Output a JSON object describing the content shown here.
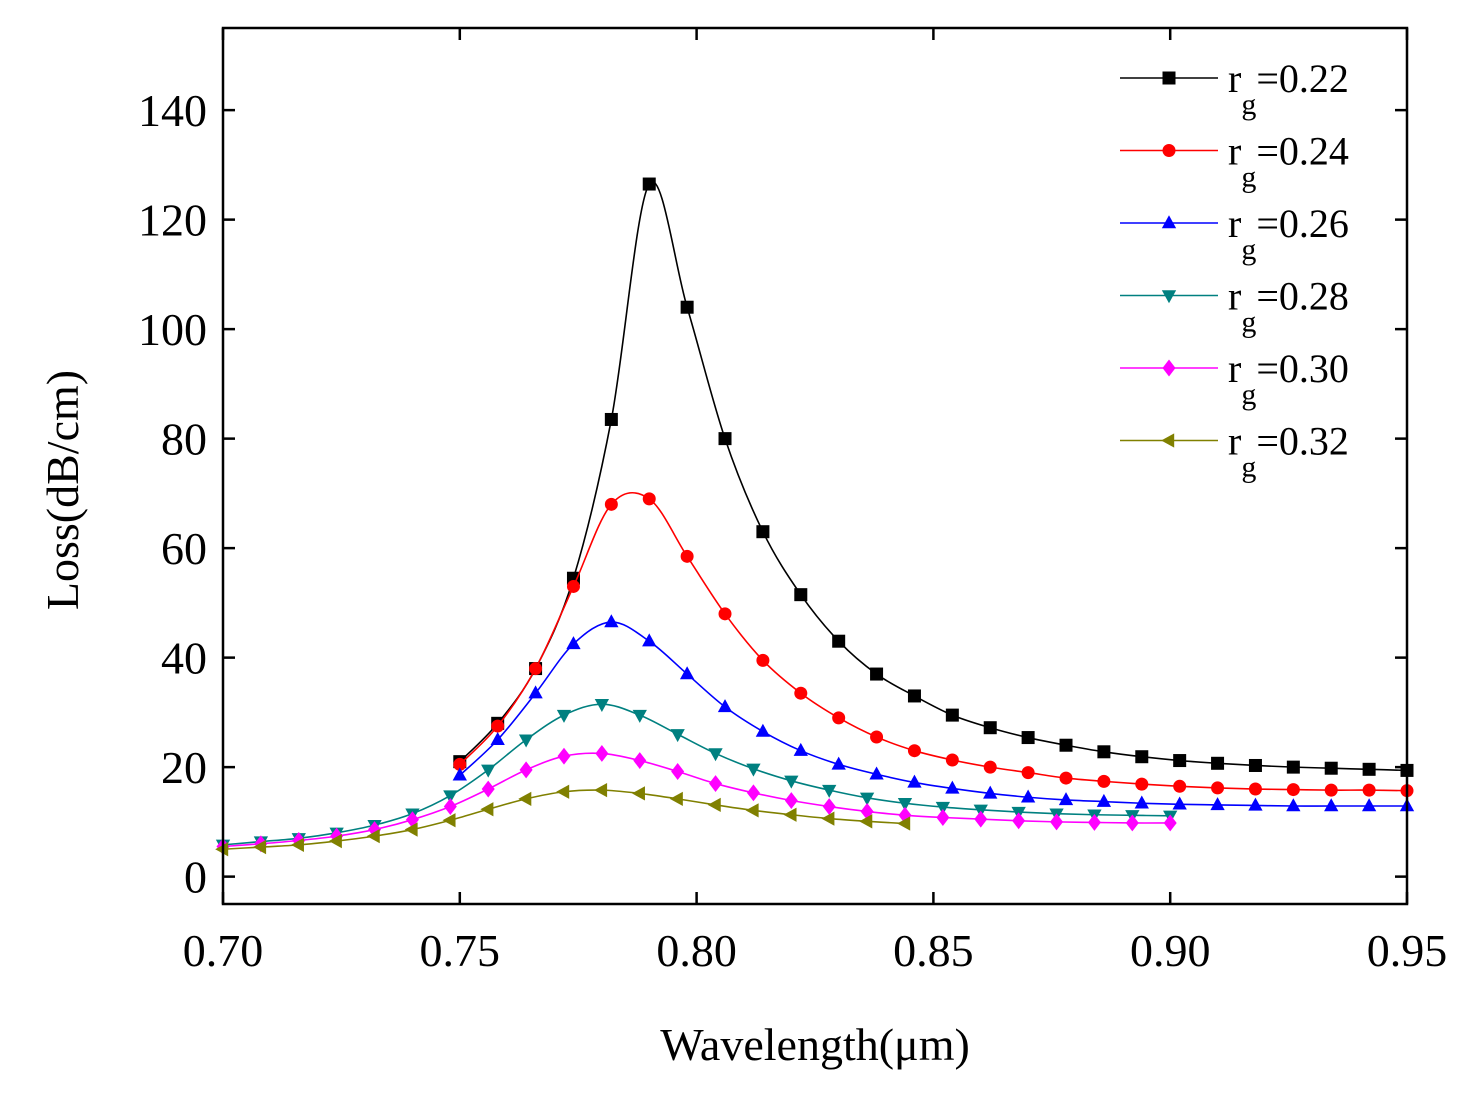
{
  "chart_data": {
    "type": "line",
    "title": "",
    "xlabel": "Wavelength(μm)",
    "ylabel": "Loss(dB/cm)",
    "xlim": [
      0.7,
      0.95
    ],
    "ylim": [
      -5,
      155
    ],
    "xticks": [
      0.7,
      0.75,
      0.8,
      0.85,
      0.9,
      0.95
    ],
    "xtick_labels": [
      "0.70",
      "0.75",
      "0.80",
      "0.85",
      "0.90",
      "0.95"
    ],
    "yticks": [
      0,
      20,
      40,
      60,
      80,
      100,
      120,
      140
    ],
    "ytick_labels": [
      "0",
      "20",
      "40",
      "60",
      "80",
      "100",
      "120",
      "140"
    ],
    "grid": false,
    "legend_position": "top-right",
    "series": [
      {
        "name": "r_g=0.22",
        "legend_base": "r",
        "legend_sub": "g",
        "legend_value": "=0.22",
        "color": "#000000",
        "marker": "square",
        "x": [
          0.75,
          0.758,
          0.766,
          0.774,
          0.782,
          0.79,
          0.798,
          0.806,
          0.814,
          0.822,
          0.83,
          0.838,
          0.846,
          0.854,
          0.862,
          0.87,
          0.878,
          0.886,
          0.894,
          0.902,
          0.91,
          0.918,
          0.926,
          0.934,
          0.942,
          0.95
        ],
        "y": [
          21.0,
          28.0,
          38.0,
          54.5,
          83.5,
          126.5,
          104.0,
          80.0,
          63.0,
          51.5,
          43.0,
          37.0,
          33.0,
          29.5,
          27.2,
          25.4,
          24.0,
          22.8,
          21.9,
          21.2,
          20.7,
          20.3,
          20.0,
          19.8,
          19.6,
          19.4
        ]
      },
      {
        "name": "r_g=0.24",
        "legend_base": "r",
        "legend_sub": "g",
        "legend_value": "=0.24",
        "color": "#ff0000",
        "marker": "circle",
        "x": [
          0.75,
          0.758,
          0.766,
          0.774,
          0.782,
          0.79,
          0.798,
          0.806,
          0.814,
          0.822,
          0.83,
          0.838,
          0.846,
          0.854,
          0.862,
          0.87,
          0.878,
          0.886,
          0.894,
          0.902,
          0.91,
          0.918,
          0.926,
          0.934,
          0.942,
          0.95
        ],
        "y": [
          20.5,
          27.5,
          38.0,
          53.0,
          68.0,
          69.0,
          58.5,
          48.0,
          39.5,
          33.5,
          29.0,
          25.5,
          23.0,
          21.3,
          20.0,
          19.0,
          18.0,
          17.4,
          16.9,
          16.5,
          16.2,
          16.0,
          15.9,
          15.8,
          15.8,
          15.7
        ]
      },
      {
        "name": "r_g=0.26",
        "legend_base": "r",
        "legend_sub": "g",
        "legend_value": "=0.26",
        "color": "#0000ff",
        "marker": "triangle-up",
        "x": [
          0.75,
          0.758,
          0.766,
          0.774,
          0.782,
          0.79,
          0.798,
          0.806,
          0.814,
          0.822,
          0.83,
          0.838,
          0.846,
          0.854,
          0.862,
          0.87,
          0.878,
          0.886,
          0.894,
          0.902,
          0.91,
          0.918,
          0.926,
          0.934,
          0.942,
          0.95
        ],
        "y": [
          18.5,
          25.0,
          33.5,
          42.5,
          46.5,
          43.0,
          37.0,
          31.0,
          26.5,
          23.0,
          20.5,
          18.7,
          17.2,
          16.1,
          15.2,
          14.5,
          14.0,
          13.7,
          13.4,
          13.2,
          13.1,
          13.0,
          12.9,
          12.9,
          12.9,
          12.9
        ]
      },
      {
        "name": "r_g=0.28",
        "legend_base": "r",
        "legend_sub": "g",
        "legend_value": "=0.28",
        "color": "#008080",
        "marker": "triangle-down",
        "x": [
          0.7,
          0.708,
          0.716,
          0.724,
          0.732,
          0.74,
          0.748,
          0.756,
          0.764,
          0.772,
          0.78,
          0.788,
          0.796,
          0.804,
          0.812,
          0.82,
          0.828,
          0.836,
          0.844,
          0.852,
          0.86,
          0.868,
          0.876,
          0.884,
          0.892,
          0.9
        ],
        "y": [
          5.8,
          6.4,
          7.0,
          8.0,
          9.4,
          11.5,
          14.8,
          19.5,
          25.0,
          29.5,
          31.5,
          29.5,
          26.0,
          22.5,
          19.7,
          17.5,
          15.8,
          14.4,
          13.4,
          12.7,
          12.2,
          11.8,
          11.5,
          11.3,
          11.2,
          11.1
        ]
      },
      {
        "name": "r_g=0.30",
        "legend_base": "r",
        "legend_sub": "g",
        "legend_value": "=0.30",
        "color": "#ff00ff",
        "marker": "diamond",
        "x": [
          0.7,
          0.708,
          0.716,
          0.724,
          0.732,
          0.74,
          0.748,
          0.756,
          0.764,
          0.772,
          0.78,
          0.788,
          0.796,
          0.804,
          0.812,
          0.82,
          0.828,
          0.836,
          0.844,
          0.852,
          0.86,
          0.868,
          0.876,
          0.884,
          0.892,
          0.9
        ],
        "y": [
          5.5,
          6.0,
          6.6,
          7.4,
          8.6,
          10.4,
          12.8,
          16.0,
          19.5,
          22.0,
          22.5,
          21.2,
          19.2,
          17.0,
          15.3,
          13.9,
          12.8,
          11.9,
          11.2,
          10.8,
          10.5,
          10.2,
          10.0,
          9.9,
          9.8,
          9.8
        ]
      },
      {
        "name": "r_g=0.32",
        "legend_base": "r",
        "legend_sub": "g",
        "legend_value": "=0.32",
        "color": "#808000",
        "marker": "triangle-left",
        "x": [
          0.7,
          0.708,
          0.716,
          0.724,
          0.732,
          0.74,
          0.748,
          0.756,
          0.764,
          0.772,
          0.78,
          0.788,
          0.796,
          0.804,
          0.812,
          0.82,
          0.828,
          0.836,
          0.844
        ],
        "y": [
          5.0,
          5.4,
          5.8,
          6.5,
          7.4,
          8.6,
          10.3,
          12.3,
          14.2,
          15.5,
          15.8,
          15.2,
          14.2,
          13.1,
          12.1,
          11.3,
          10.6,
          10.1,
          9.7
        ]
      }
    ]
  }
}
